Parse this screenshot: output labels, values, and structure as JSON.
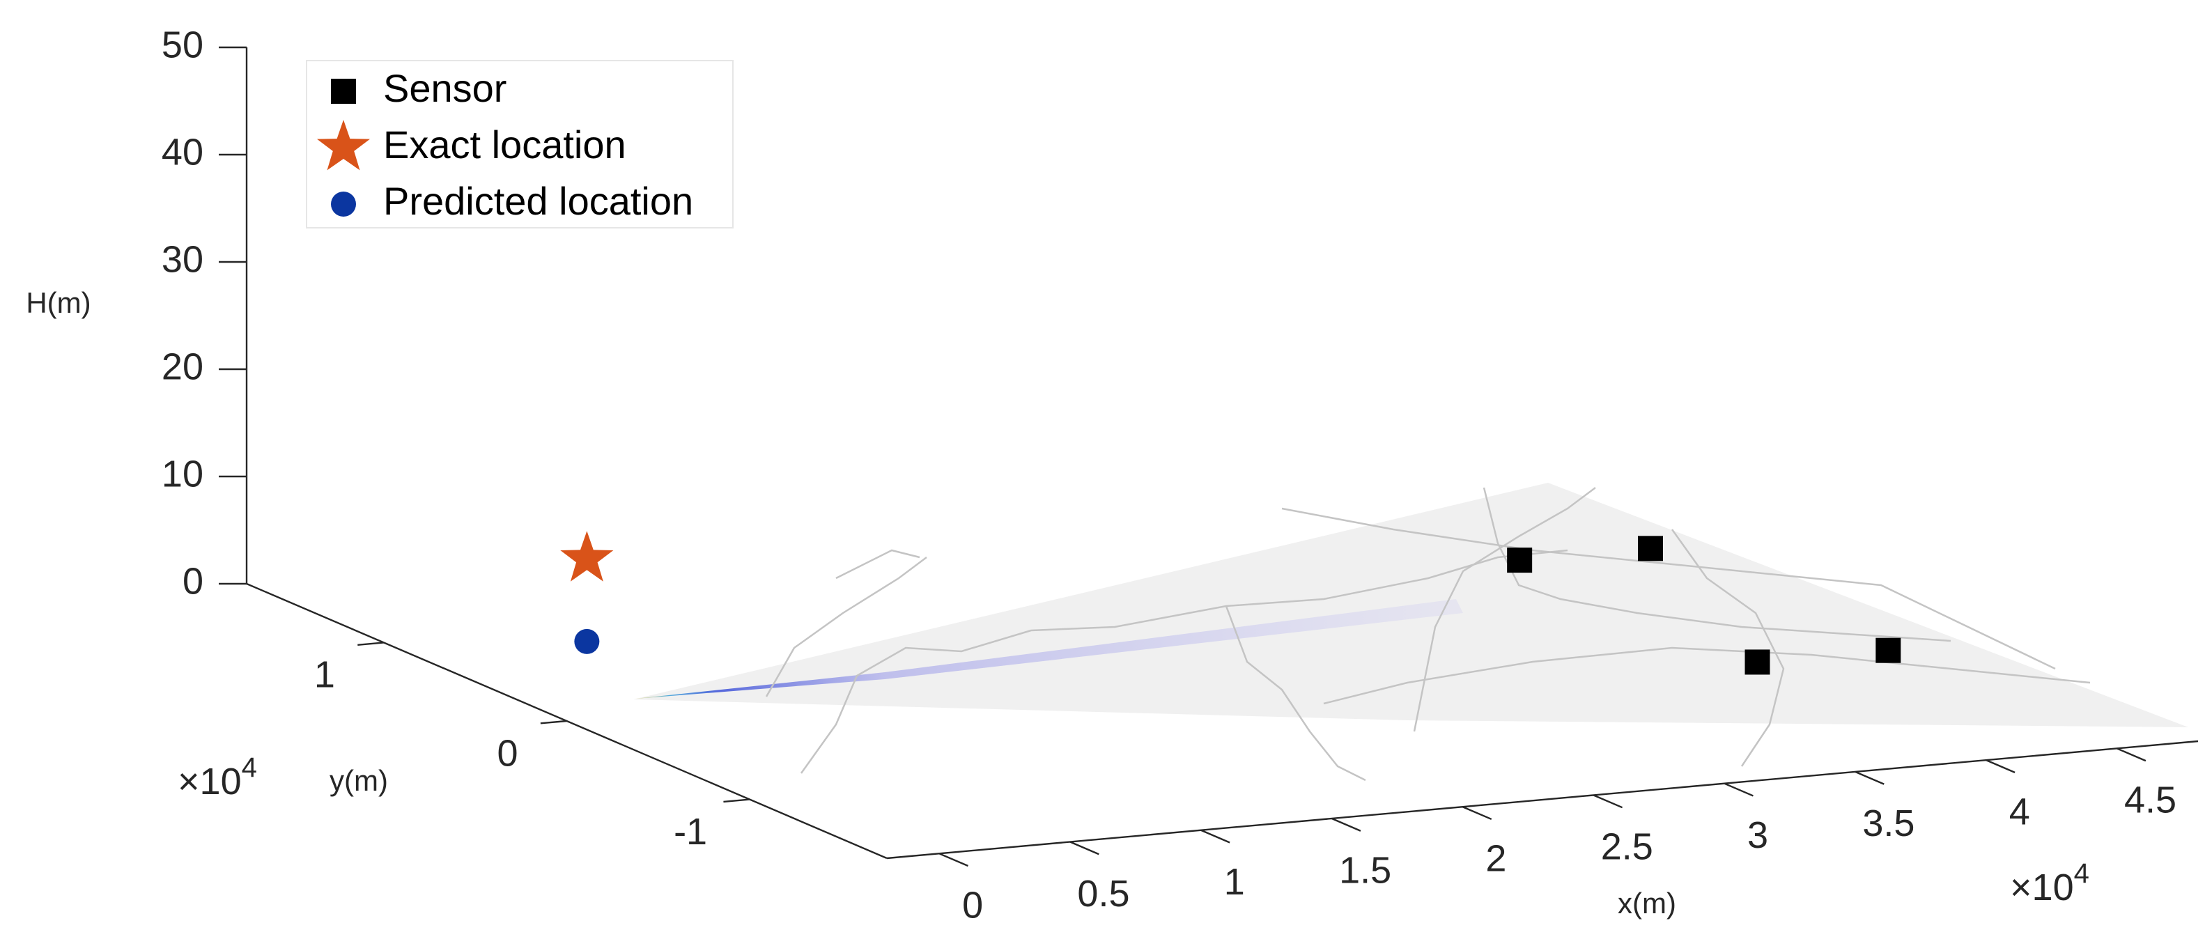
{
  "chart_data": {
    "type": "scatter3d",
    "xlabel": "x(m)",
    "ylabel": "y(m)",
    "zlabel": "H(m)",
    "x_multiplier": {
      "base": "×10",
      "power": "4"
    },
    "y_multiplier": {
      "base": "×10",
      "power": "4"
    },
    "xlim": [
      -0.2,
      4.81
    ],
    "ylim": [
      -1.75,
      1.75
    ],
    "zlim": [
      0,
      50
    ],
    "xticks": [
      0,
      0.5,
      1,
      1.5,
      2,
      2.5,
      3,
      3.5,
      4,
      4.5
    ],
    "yticks": [
      -1,
      0,
      1
    ],
    "zticks": [
      0,
      10,
      20,
      30,
      40,
      50
    ],
    "legend": "upper left",
    "series": [
      {
        "name": "Sensor",
        "color": "#000000",
        "marker": "square",
        "x": [
          4.0,
          4.5,
          4.0,
          4.5
        ],
        "y": [
          0.8,
          0.8,
          -0.5,
          -0.5
        ],
        "z": [
          0,
          0,
          0,
          0
        ]
      },
      {
        "name": "Exact location",
        "color": "#d95319",
        "marker": "star",
        "x": [
          0.45
        ],
        "y": [
          0.82
        ],
        "z": [
          7.7
        ]
      },
      {
        "name": "Predicted location",
        "color": "#0b36a0",
        "marker": "circle",
        "x": [
          0.45
        ],
        "y": [
          0.82
        ],
        "z": [
          0
        ]
      }
    ]
  }
}
